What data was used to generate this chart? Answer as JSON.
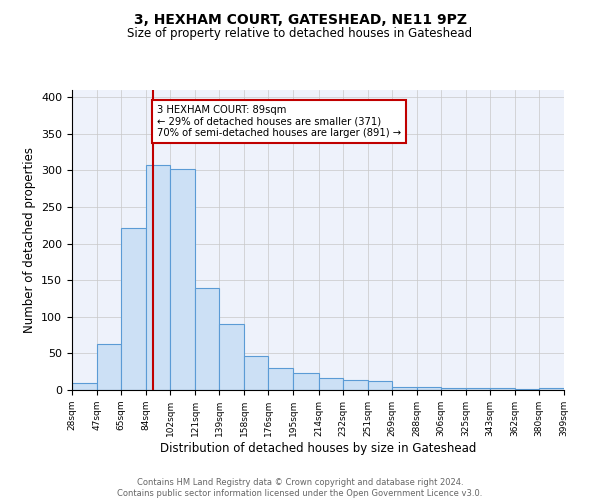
{
  "title": "3, HEXHAM COURT, GATESHEAD, NE11 9PZ",
  "subtitle": "Size of property relative to detached houses in Gateshead",
  "xlabel": "Distribution of detached houses by size in Gateshead",
  "ylabel": "Number of detached properties",
  "bins": [
    28,
    47,
    65,
    84,
    102,
    121,
    139,
    158,
    176,
    195,
    214,
    232,
    251,
    269,
    288,
    306,
    325,
    343,
    362,
    380,
    399
  ],
  "counts": [
    10,
    63,
    222,
    307,
    302,
    140,
    90,
    46,
    30,
    23,
    16,
    14,
    12,
    4,
    4,
    3,
    3,
    3,
    1,
    3
  ],
  "bar_face_color": "#cce0f5",
  "bar_edge_color": "#5b9bd5",
  "vline_x": 89,
  "vline_color": "#c00000",
  "annotation_text": "3 HEXHAM COURT: 89sqm\n← 29% of detached houses are smaller (371)\n70% of semi-detached houses are larger (891) →",
  "annotation_box_edge_color": "#c00000",
  "annotation_box_face_color": "white",
  "ylim": [
    0,
    410
  ],
  "yticks": [
    0,
    50,
    100,
    150,
    200,
    250,
    300,
    350,
    400
  ],
  "tick_labels": [
    "28sqm",
    "47sqm",
    "65sqm",
    "84sqm",
    "102sqm",
    "121sqm",
    "139sqm",
    "158sqm",
    "176sqm",
    "195sqm",
    "214sqm",
    "232sqm",
    "251sqm",
    "269sqm",
    "288sqm",
    "306sqm",
    "325sqm",
    "343sqm",
    "362sqm",
    "380sqm",
    "399sqm"
  ],
  "footnote": "Contains HM Land Registry data © Crown copyright and database right 2024.\nContains public sector information licensed under the Open Government Licence v3.0.",
  "bg_color": "#eef2fb",
  "grid_color": "#c8c8c8"
}
